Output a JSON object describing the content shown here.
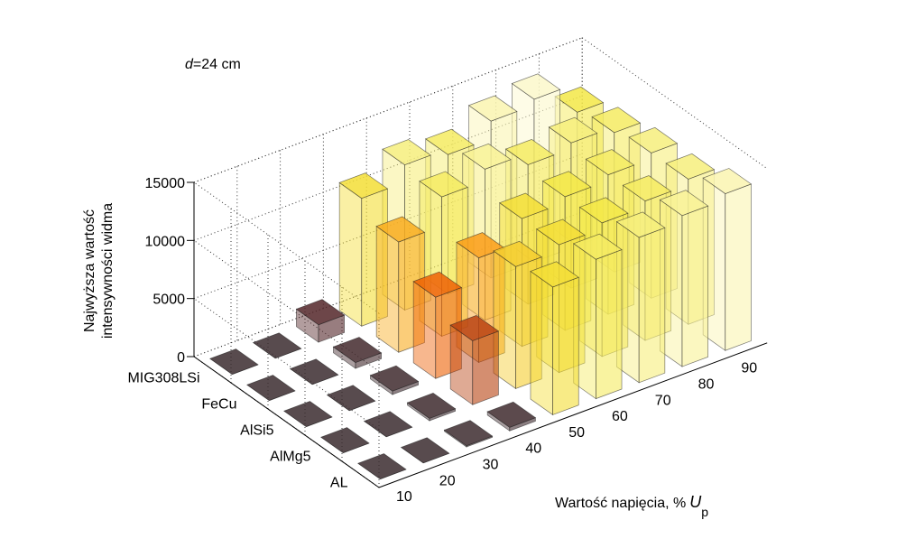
{
  "chart_data": {
    "type": "bar3d",
    "annotation": {
      "var": "d",
      "text": "=24 cm"
    },
    "zlabel": [
      "Najwyższa wartość",
      "intensywności widma"
    ],
    "xlabel": {
      "text": "Wartość napięcia, %",
      "var": "U",
      "sub": "p"
    },
    "categories": [
      "10",
      "20",
      "30",
      "40",
      "50",
      "60",
      "70",
      "80",
      "90"
    ],
    "series": [
      {
        "name": "MIG308LSi",
        "values": [
          0,
          0,
          1500,
          11000,
          12500,
          12000,
          13500,
          14000,
          11500
        ]
      },
      {
        "name": "FeCu",
        "values": [
          0,
          0,
          500,
          9500,
          12000,
          13000,
          12000,
          12500,
          12000
        ]
      },
      {
        "name": "AlSi5",
        "values": [
          0,
          0,
          300,
          7000,
          9000,
          11000,
          11500,
          12000,
          12500
        ]
      },
      {
        "name": "AlMg5",
        "values": [
          0,
          0,
          200,
          5500,
          10500,
          11000,
          11500,
          12000,
          12500
        ]
      },
      {
        "name": "AL",
        "values": [
          0,
          0,
          100,
          300,
          11000,
          12000,
          12500,
          13000,
          13500
        ]
      }
    ],
    "zlim": [
      0,
      15000
    ],
    "zticks": [
      0,
      5000,
      10000,
      15000
    ],
    "grid": true,
    "colormap": [
      "#3b2b2f",
      "#7a1f1f",
      "#ff6a00",
      "#f2e63a",
      "#ffffff"
    ]
  }
}
